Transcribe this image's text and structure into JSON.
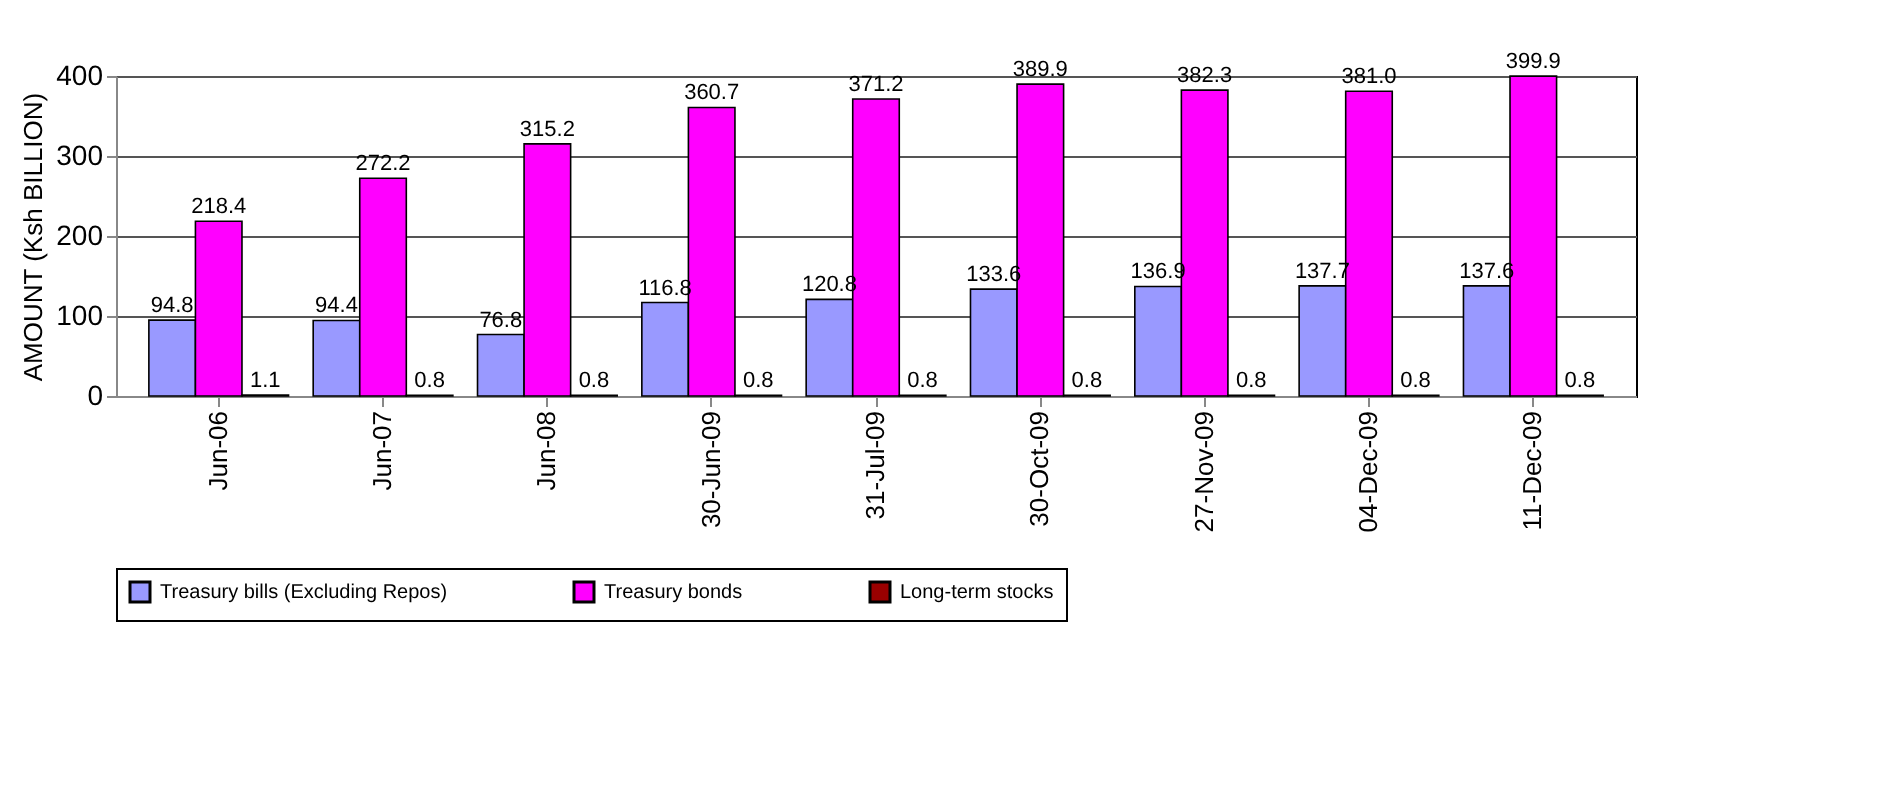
{
  "chart_data": {
    "type": "bar",
    "ylabel": "AMOUNT (Ksh BILLION)",
    "categories": [
      "Jun-06",
      "Jun-07",
      "Jun-08",
      "30-Jun-09",
      "31-Jul-09",
      "30-Oct-09",
      "27-Nov-09",
      "04-Dec-09",
      "11-Dec-09"
    ],
    "series": [
      {
        "name": "Treasury bills (Excluding Repos)",
        "color": "#9999ff",
        "values": [
          94.8,
          94.4,
          76.8,
          116.8,
          120.8,
          133.6,
          136.9,
          137.7,
          137.6
        ]
      },
      {
        "name": "Treasury bonds",
        "color": "#ff00ff",
        "values": [
          218.4,
          272.2,
          315.2,
          360.7,
          371.2,
          389.9,
          382.3,
          381.0,
          399.9
        ]
      },
      {
        "name": "Long-term stocks",
        "color": "#990000",
        "values": [
          1.1,
          0.8,
          0.8,
          0.8,
          0.8,
          0.8,
          0.8,
          0.8,
          0.8
        ]
      }
    ],
    "value_labels": [
      [
        "94.8",
        "94.4",
        "76.8",
        "116.8",
        "120.8",
        "133.6",
        "136.9",
        "137.7",
        "137.6"
      ],
      [
        "218.4",
        "272.2",
        "315.2",
        "360.7",
        "371.2",
        "389.9",
        "382.3",
        "381.0",
        "399.9"
      ],
      [
        "1.1",
        "0.8",
        "0.8",
        "0.8",
        "0.8",
        "0.8",
        "0.8",
        "0.8",
        "0.8"
      ]
    ],
    "ylim": [
      0,
      400
    ],
    "yticks": [
      0,
      100,
      200,
      300,
      400
    ],
    "grid": "y",
    "legend": "bottom"
  }
}
